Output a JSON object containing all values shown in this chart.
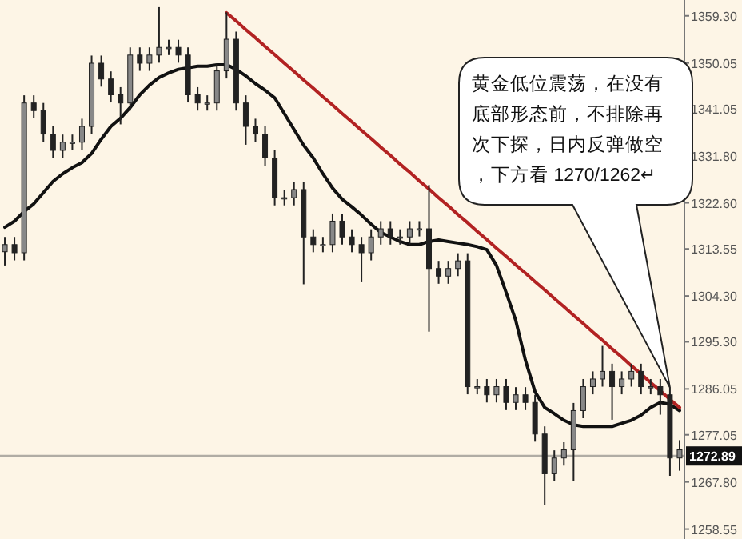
{
  "chart_data": {
    "type": "candlestick",
    "categories": [
      null,
      null,
      null,
      null,
      null,
      null,
      null,
      null,
      null,
      null,
      null,
      null,
      null,
      null,
      null,
      null,
      null,
      null,
      null,
      null,
      null,
      null,
      null,
      null,
      null,
      null,
      null,
      null,
      null,
      null,
      null,
      null,
      null,
      null,
      null,
      null,
      null,
      null,
      null,
      null,
      null,
      null,
      null,
      null,
      null,
      null,
      null,
      null,
      null,
      null,
      null,
      null,
      null,
      null,
      null,
      null,
      null,
      null,
      null,
      null,
      null,
      null,
      null,
      null,
      null,
      null,
      null,
      null,
      null,
      null,
      null
    ],
    "color": "#222222",
    "ohlc": [
      [
        1313.0,
        1315.9,
        1310.3,
        1314.4
      ],
      [
        1314.4,
        1315.9,
        1311.3,
        1312.8
      ],
      [
        1312.8,
        1343.7,
        1311.3,
        1342.2
      ],
      [
        1342.2,
        1343.7,
        1339.2,
        1340.7
      ],
      [
        1340.7,
        1342.2,
        1334.6,
        1336.1
      ],
      [
        1336.1,
        1337.6,
        1331.4,
        1332.9
      ],
      [
        1332.9,
        1336.0,
        1331.4,
        1334.5
      ],
      [
        1334.5,
        1336.0,
        1333.0,
        1334.5
      ],
      [
        1334.5,
        1339.1,
        1333.0,
        1337.6
      ],
      [
        1337.6,
        1351.5,
        1336.1,
        1350.0
      ],
      [
        1350.0,
        1351.5,
        1345.4,
        1346.9
      ],
      [
        1346.9,
        1348.4,
        1342.3,
        1343.8
      ],
      [
        1343.8,
        1345.3,
        1338.0,
        1342.2
      ],
      [
        1342.2,
        1353.1,
        1340.7,
        1351.6
      ],
      [
        1351.6,
        1353.1,
        1348.5,
        1350.0
      ],
      [
        1350.0,
        1353.1,
        1348.5,
        1351.6
      ],
      [
        1351.6,
        1361.0,
        1350.1,
        1353.1
      ],
      [
        1353.1,
        1354.6,
        1351.6,
        1353.1
      ],
      [
        1353.1,
        1354.6,
        1350.1,
        1351.6
      ],
      [
        1351.6,
        1353.1,
        1342.3,
        1343.8
      ],
      [
        1343.8,
        1345.3,
        1340.7,
        1342.2
      ],
      [
        1342.2,
        1343.7,
        1340.7,
        1342.2
      ],
      [
        1342.2,
        1350.0,
        1340.7,
        1348.5
      ],
      [
        1348.5,
        1360.0,
        1347.0,
        1354.7
      ],
      [
        1354.7,
        1356.2,
        1340.7,
        1342.2
      ],
      [
        1342.2,
        1343.7,
        1334.0,
        1337.6
      ],
      [
        1337.6,
        1339.1,
        1334.6,
        1336.1
      ],
      [
        1336.1,
        1337.6,
        1329.9,
        1331.4
      ],
      [
        1331.4,
        1332.9,
        1322.1,
        1323.6
      ],
      [
        1323.6,
        1325.1,
        1322.1,
        1323.6
      ],
      [
        1323.6,
        1326.7,
        1322.1,
        1325.2
      ],
      [
        1325.2,
        1326.7,
        1306.6,
        1315.9
      ],
      [
        1315.9,
        1317.4,
        1312.9,
        1314.4
      ],
      [
        1314.4,
        1315.9,
        1312.9,
        1314.4
      ],
      [
        1314.4,
        1320.5,
        1312.9,
        1319.0
      ],
      [
        1319.0,
        1320.5,
        1314.4,
        1315.9
      ],
      [
        1315.9,
        1317.4,
        1312.9,
        1314.4
      ],
      [
        1314.4,
        1315.9,
        1307.0,
        1312.8
      ],
      [
        1312.8,
        1317.4,
        1311.3,
        1315.9
      ],
      [
        1315.9,
        1319.0,
        1314.4,
        1317.5
      ],
      [
        1317.5,
        1319.0,
        1314.4,
        1315.9
      ],
      [
        1315.9,
        1317.4,
        1314.4,
        1315.9
      ],
      [
        1315.9,
        1319.0,
        1314.4,
        1317.5
      ],
      [
        1317.5,
        1319.0,
        1316.0,
        1317.5
      ],
      [
        1317.5,
        1326.1,
        1297.3,
        1309.7
      ],
      [
        1309.7,
        1311.2,
        1306.7,
        1308.2
      ],
      [
        1308.2,
        1311.2,
        1306.7,
        1309.7
      ],
      [
        1309.7,
        1312.7,
        1308.2,
        1311.2
      ],
      [
        1311.2,
        1312.7,
        1285.0,
        1286.5
      ],
      [
        1286.5,
        1288.0,
        1285.0,
        1286.5
      ],
      [
        1286.5,
        1288.0,
        1283.4,
        1284.9
      ],
      [
        1284.9,
        1288.0,
        1283.4,
        1286.5
      ],
      [
        1286.5,
        1288.0,
        1281.9,
        1283.4
      ],
      [
        1283.4,
        1286.4,
        1281.9,
        1284.9
      ],
      [
        1284.9,
        1286.4,
        1281.9,
        1283.4
      ],
      [
        1283.4,
        1284.9,
        1275.7,
        1277.2
      ],
      [
        1277.2,
        1278.7,
        1263.2,
        1269.4
      ],
      [
        1269.4,
        1274.0,
        1267.9,
        1272.5
      ],
      [
        1272.5,
        1275.6,
        1271.0,
        1274.1
      ],
      [
        1274.1,
        1283.3,
        1268.0,
        1281.8
      ],
      [
        1281.8,
        1288.0,
        1280.3,
        1286.5
      ],
      [
        1286.5,
        1289.5,
        1285.0,
        1288.0
      ],
      [
        1288.0,
        1294.5,
        1286.5,
        1289.5
      ],
      [
        1289.5,
        1291.0,
        1280.0,
        1286.5
      ],
      [
        1286.5,
        1289.5,
        1285.0,
        1288.0
      ],
      [
        1288.0,
        1291.0,
        1286.5,
        1289.5
      ],
      [
        1289.5,
        1291.0,
        1285.0,
        1286.5
      ],
      [
        1286.5,
        1288.0,
        1285.0,
        1286.5
      ],
      [
        1286.5,
        1288.0,
        1281.0,
        1284.9
      ],
      [
        1284.9,
        1286.4,
        1269.0,
        1272.5
      ],
      [
        1272.5,
        1276.0,
        1270.0,
        1274.1
      ]
    ],
    "series": [
      {
        "type": "line",
        "color": "#111111",
        "values": [
          1317.8,
          1319.0,
          1320.9,
          1322.4,
          1324.6,
          1326.8,
          1328.3,
          1329.5,
          1330.5,
          1332.3,
          1335.1,
          1337.6,
          1339.2,
          1341.3,
          1343.8,
          1345.7,
          1347.2,
          1348.1,
          1348.8,
          1349.1,
          1349.4,
          1349.4,
          1349.7,
          1349.7,
          1348.8,
          1347.5,
          1346.0,
          1344.7,
          1343.2,
          1340.1,
          1337.0,
          1333.9,
          1331.4,
          1328.3,
          1325.5,
          1323.3,
          1321.8,
          1320.2,
          1318.4,
          1316.8,
          1315.9,
          1315.0,
          1314.4,
          1314.4,
          1315.0,
          1315.3,
          1315.0,
          1314.7,
          1314.4,
          1314.0,
          1313.4,
          1310.3,
          1305.0,
          1299.5,
          1291.7,
          1285.5,
          1282.4,
          1281.2,
          1279.9,
          1279.0,
          1278.7,
          1278.7,
          1278.7,
          1278.7,
          1279.3,
          1279.9,
          1280.9,
          1282.4,
          1283.4,
          1283.0,
          1281.8
        ]
      },
      {
        "type": "line",
        "color": "#b22222",
        "values": [
          null,
          null,
          null,
          null,
          null,
          null,
          null,
          null,
          null,
          null,
          null,
          null,
          null,
          null,
          null,
          null,
          null,
          null,
          null,
          null,
          null,
          null,
          null,
          1359.9,
          1358.3,
          1356.6,
          1355.0,
          1353.3,
          1351.7,
          1350.0,
          1348.4,
          1346.7,
          1345.1,
          1343.4,
          1341.8,
          1340.1,
          1338.5,
          1336.8,
          1335.2,
          1333.5,
          1331.9,
          1330.2,
          1328.6,
          1326.9,
          1325.3,
          1323.6,
          1322.0,
          1320.3,
          1318.7,
          1317.0,
          1315.4,
          1313.7,
          1312.1,
          1310.4,
          1308.8,
          1307.1,
          1305.5,
          1303.8,
          1302.2,
          1300.5,
          1298.9,
          1297.2,
          1295.6,
          1293.9,
          1292.3,
          1290.6,
          1289.0,
          1287.3,
          1285.7,
          1284.0,
          1282.4
        ]
      }
    ],
    "ylim": [
      1256.6,
      1362.4
    ],
    "yticks": [
      {
        "value": 1359.3,
        "label": "1359.30"
      },
      {
        "value": 1350.05,
        "label": "1350.05"
      },
      {
        "value": 1341.05,
        "label": "1341.05"
      },
      {
        "value": 1331.8,
        "label": "1331.80"
      },
      {
        "value": 1322.6,
        "label": "1322.60"
      },
      {
        "value": 1313.55,
        "label": "1313.55"
      },
      {
        "value": 1304.3,
        "label": "1304.30"
      },
      {
        "value": 1295.3,
        "label": "1295.30"
      },
      {
        "value": 1286.05,
        "label": "1286.05"
      },
      {
        "value": 1277.05,
        "label": "1277.05"
      },
      {
        "value": 1267.8,
        "label": "1267.80"
      },
      {
        "value": 1258.55,
        "label": "1258.55"
      }
    ],
    "ref_lines": [
      {
        "axis": "y",
        "value": 1272.89,
        "label": "1272.89",
        "color": "#b0aca4"
      }
    ],
    "annotations": [
      "黄金低位震荡，在没有底部形态前，不排除再次下探，日内反弹做空，下方看 1270/1262↵"
    ],
    "tick_labels": "y",
    "grid": false
  }
}
